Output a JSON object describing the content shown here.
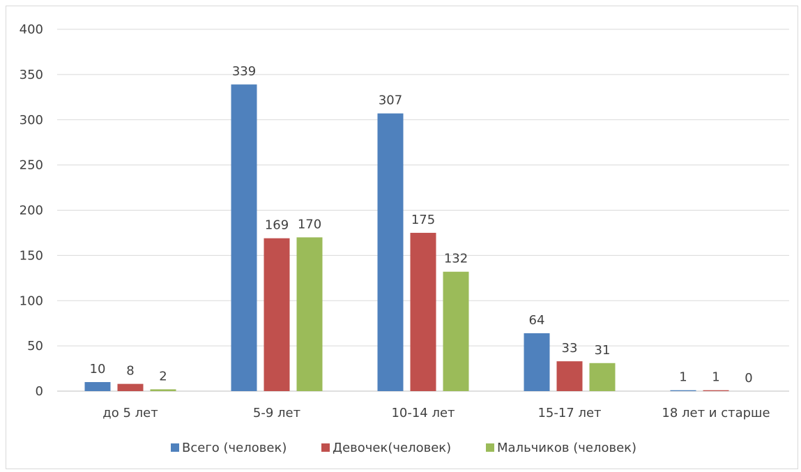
{
  "chart_data": {
    "type": "bar",
    "categories": [
      "до 5 лет",
      "5-9 лет",
      "10-14 лет",
      "15-17 лет",
      "18 лет и старше"
    ],
    "series": [
      {
        "name": "Всего (человек)",
        "values": [
          10,
          339,
          307,
          64,
          1
        ],
        "color": "#4f81bd"
      },
      {
        "name": "Девочек(человек)",
        "values": [
          8,
          169,
          175,
          33,
          1
        ],
        "color": "#c0504d"
      },
      {
        "name": "Мальчиков (человек)",
        "values": [
          2,
          170,
          132,
          31,
          0
        ],
        "color": "#9bbb59"
      }
    ],
    "yticks": [
      "0",
      "50",
      "100",
      "150",
      "200",
      "250",
      "300",
      "350",
      "400"
    ],
    "ylim": [
      0,
      400
    ],
    "grid": true,
    "legend": "bottom",
    "data_labels": true
  }
}
